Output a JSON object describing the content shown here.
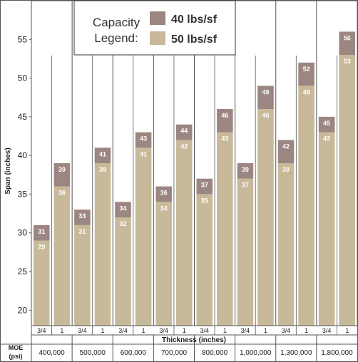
{
  "chart_data": {
    "type": "bar",
    "ylabel": "Span (inches)",
    "xlabel": "Thickness (inches)",
    "moe_label_line1": "MOE",
    "moe_label_line2": "(psi)",
    "ylim": [
      18,
      60
    ],
    "yticks": [
      20,
      25,
      30,
      35,
      40,
      45,
      50,
      55
    ],
    "grid": false,
    "legend": {
      "title_line1": "Capacity",
      "title_line2": "Legend:",
      "placement": "top-center",
      "items": [
        {
          "label": "40 lbs/sf",
          "color": "#9c8682"
        },
        {
          "label": "50 lbs/sf",
          "color": "#c8b99a"
        }
      ]
    },
    "categories": [
      "3/4",
      "1",
      "3/4",
      "1",
      "3/4",
      "1",
      "3/4",
      "1",
      "3/4",
      "1",
      "3/4",
      "1",
      "3/4",
      "1",
      "3/4",
      "1"
    ],
    "moe_groups": [
      "400,000",
      "500,000",
      "600,000",
      "700,000",
      "800,000",
      "1,000,000",
      "1,300,000",
      "1,800,000"
    ],
    "series": [
      {
        "name": "40 lbs/sf",
        "color": "#9c8682",
        "values": [
          31,
          39,
          33,
          41,
          34,
          43,
          36,
          44,
          37,
          46,
          39,
          49,
          42,
          52,
          45,
          56
        ]
      },
      {
        "name": "50 lbs/sf",
        "color": "#c8b99a",
        "values": [
          29,
          36,
          31,
          39,
          32,
          41,
          34,
          42,
          35,
          43,
          37,
          46,
          39,
          49,
          43,
          53
        ]
      }
    ]
  }
}
